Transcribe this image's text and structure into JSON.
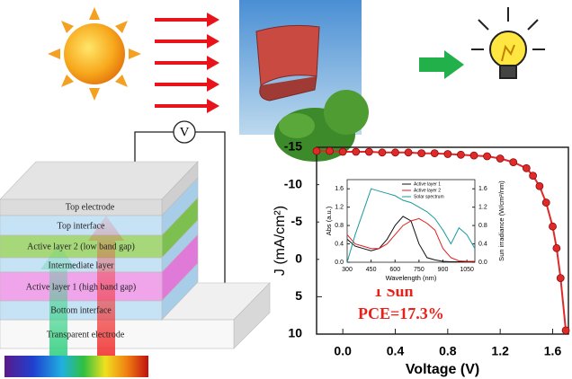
{
  "diagram": {
    "voltmeter": "V",
    "layers": [
      "Top electrode",
      "Top interface",
      "Active layer 2 (low band gap)",
      "Intermediate layer",
      "Active layer 1 (high band gap)",
      "Bottom interface",
      "Transparent electrode"
    ]
  },
  "chart_data": [
    {
      "type": "line",
      "x_label": "Voltage (V)",
      "y_label": "J (mA/cm²)",
      "x": [
        -0.2,
        -0.1,
        0.0,
        0.1,
        0.2,
        0.3,
        0.4,
        0.5,
        0.6,
        0.7,
        0.8,
        0.9,
        1.0,
        1.1,
        1.2,
        1.3,
        1.4,
        1.45,
        1.5,
        1.55,
        1.6,
        1.63,
        1.66,
        1.7
      ],
      "values": [
        -14.5,
        -14.5,
        -14.4,
        -14.4,
        -14.4,
        -14.3,
        -14.3,
        -14.3,
        -14.2,
        -14.2,
        -14.1,
        -14.0,
        -13.9,
        -13.8,
        -13.5,
        -13.0,
        -12.2,
        -11.2,
        -9.8,
        -7.6,
        -4.4,
        -1.5,
        2.5,
        9.5
      ],
      "color": "#e02a2a",
      "markers": true,
      "xlim": [
        -0.2,
        1.72
      ],
      "ylim": [
        10,
        -15
      ],
      "xticks": [
        {
          "value": 0,
          "label": "0.0"
        },
        0.4,
        0.8,
        1.2,
        1.6
      ],
      "yticks": [
        -15,
        -10,
        -5,
        0,
        5,
        10
      ],
      "annotations": [
        "1 Sun",
        "PCE=17.3%"
      ]
    },
    {
      "type": "line",
      "x_label": "Wavelength (nm)",
      "y_label": "Abs (a.u.)",
      "y2_label": "Sun irradiance (W/cm²/nm)",
      "x": [
        300,
        350,
        400,
        450,
        500,
        550,
        600,
        650,
        700,
        750,
        800,
        850,
        900,
        950,
        1000,
        1050,
        1100
      ],
      "series": [
        {
          "name": "Active layer 1",
          "color": "#111111",
          "values": [
            0.5,
            0.35,
            0.3,
            0.25,
            0.3,
            0.5,
            0.8,
            1.0,
            0.9,
            0.4,
            0.1,
            0.05,
            0.02,
            0.01,
            0.01,
            0.01,
            0.01
          ]
        },
        {
          "name": "Active layer 2",
          "color": "#e02020",
          "values": [
            0.6,
            0.4,
            0.35,
            0.3,
            0.3,
            0.4,
            0.6,
            0.8,
            0.9,
            0.95,
            0.85,
            0.7,
            0.3,
            0.1,
            0.03,
            0.02,
            0.02
          ]
        },
        {
          "name": "Solar spectrum",
          "color": "#1a9a9a",
          "axis": "y2",
          "values": [
            0.0,
            0.6,
            1.1,
            1.6,
            1.55,
            1.5,
            1.45,
            1.35,
            1.3,
            1.2,
            1.1,
            0.95,
            0.7,
            0.4,
            0.75,
            0.6,
            0.3
          ]
        }
      ],
      "legend": "upper center",
      "xlim": [
        300,
        1100
      ],
      "ylim": [
        0,
        1.8
      ],
      "y2lim": [
        0,
        1.8
      ],
      "xticks": [
        300,
        450,
        600,
        750,
        900,
        1050
      ],
      "yticks": [
        {
          "value": 0,
          "label": "0.0"
        },
        0.4,
        0.8,
        1.2,
        1.6
      ],
      "y2ticks": [
        {
          "value": 0,
          "label": "0.0"
        },
        0.4,
        0.8,
        1.2,
        1.6
      ]
    }
  ]
}
